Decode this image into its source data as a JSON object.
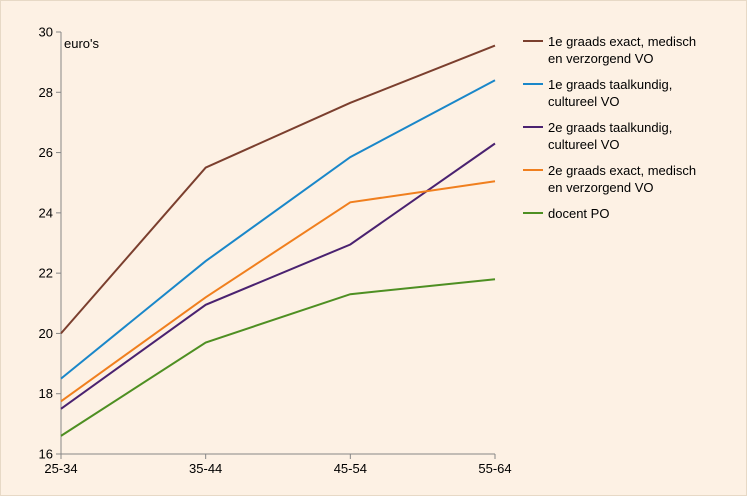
{
  "chart_data": {
    "type": "line",
    "categories": [
      "25-34",
      "35-44",
      "45-54",
      "55-64"
    ],
    "ylabel": "euro's",
    "ylim": [
      16,
      30
    ],
    "yticks": [
      16,
      18,
      20,
      22,
      24,
      26,
      28,
      30
    ],
    "grid": false,
    "legend_position": "right",
    "series": [
      {
        "name": "1e graads exact, medisch en verzorgend VO",
        "legend_lines": [
          "1e graads exact, medisch",
          "en verzorgend VO"
        ],
        "color": "#7b3f2e",
        "values": [
          20.0,
          25.5,
          27.65,
          29.55
        ]
      },
      {
        "name": "1e graads taalkundig, cultureel VO",
        "legend_lines": [
          "1e graads taalkundig,",
          "cultureel VO"
        ],
        "color": "#1a87c9",
        "values": [
          18.5,
          22.4,
          25.85,
          28.4
        ]
      },
      {
        "name": "2e graads taalkundig, cultureel VO",
        "legend_lines": [
          "2e graads taalkundig,",
          "cultureel VO"
        ],
        "color": "#4a2270",
        "values": [
          17.5,
          20.95,
          22.95,
          26.3
        ]
      },
      {
        "name": "2e graads exact, medisch en verzorgend VO",
        "legend_lines": [
          "2e graads exact, medisch",
          "en verzorgend VO"
        ],
        "color": "#f07f1e",
        "values": [
          17.75,
          21.2,
          24.35,
          25.05
        ]
      },
      {
        "name": "docent PO",
        "legend_lines": [
          "docent PO"
        ],
        "color": "#4e8f22",
        "values": [
          16.6,
          19.7,
          21.3,
          21.8
        ]
      }
    ]
  }
}
